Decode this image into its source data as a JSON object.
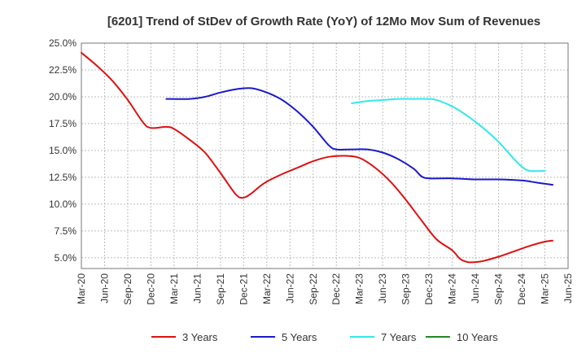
{
  "chart_data": {
    "type": "line",
    "title": "[6201]  Trend of StDev of Growth Rate (YoY) of 12Mo Mov Sum of Revenues",
    "xlabel": "",
    "ylabel": "",
    "ylim": [
      4.0,
      25.0
    ],
    "yticks": [
      5.0,
      7.5,
      10.0,
      12.5,
      15.0,
      17.5,
      20.0,
      22.5,
      25.0
    ],
    "ytick_labels": [
      "5.0%",
      "7.5%",
      "10.0%",
      "12.5%",
      "15.0%",
      "17.5%",
      "20.0%",
      "22.5%",
      "25.0%"
    ],
    "xlim": [
      0,
      63
    ],
    "xticks": [
      0,
      3,
      6,
      9,
      12,
      15,
      18,
      21,
      24,
      27,
      30,
      33,
      36,
      39,
      42,
      45,
      48,
      51,
      54,
      57,
      60,
      63
    ],
    "xtick_labels": [
      "Mar-20",
      "Jun-20",
      "Sep-20",
      "Dec-20",
      "Mar-21",
      "Jun-21",
      "Sep-21",
      "Dec-21",
      "Mar-22",
      "Jun-22",
      "Sep-22",
      "Dec-22",
      "Mar-23",
      "Jun-23",
      "Sep-23",
      "Dec-23",
      "Mar-24",
      "Jun-24",
      "Sep-24",
      "Dec-24",
      "Mar-25",
      "Jun-25"
    ],
    "grid": true,
    "legend_position": "bottom",
    "series": [
      {
        "name": "3 Years",
        "color": "#dd1111",
        "points": [
          [
            0,
            24.1
          ],
          [
            2,
            22.9
          ],
          [
            4,
            21.5
          ],
          [
            6,
            19.7
          ],
          [
            8,
            17.6
          ],
          [
            9,
            17.1
          ],
          [
            11,
            17.2
          ],
          [
            12,
            17.0
          ],
          [
            14,
            16.0
          ],
          [
            16,
            14.8
          ],
          [
            18,
            12.9
          ],
          [
            20,
            10.9
          ],
          [
            21,
            10.6
          ],
          [
            22,
            11.0
          ],
          [
            23,
            11.6
          ],
          [
            24,
            12.1
          ],
          [
            26,
            12.8
          ],
          [
            28,
            13.4
          ],
          [
            30,
            14.0
          ],
          [
            32,
            14.4
          ],
          [
            34,
            14.5
          ],
          [
            36,
            14.3
          ],
          [
            38,
            13.4
          ],
          [
            40,
            12.1
          ],
          [
            42,
            10.4
          ],
          [
            44,
            8.5
          ],
          [
            46,
            6.7
          ],
          [
            48,
            5.7
          ],
          [
            49,
            4.9
          ],
          [
            50,
            4.6
          ],
          [
            51,
            4.6
          ],
          [
            52,
            4.7
          ],
          [
            54,
            5.1
          ],
          [
            56,
            5.6
          ],
          [
            58,
            6.1
          ],
          [
            60,
            6.5
          ],
          [
            61,
            6.6
          ]
        ]
      },
      {
        "name": "5 Years",
        "color": "#1a1acc",
        "points": [
          [
            11,
            19.8
          ],
          [
            14,
            19.8
          ],
          [
            16,
            20.0
          ],
          [
            18,
            20.4
          ],
          [
            20,
            20.7
          ],
          [
            22,
            20.8
          ],
          [
            24,
            20.4
          ],
          [
            26,
            19.7
          ],
          [
            28,
            18.6
          ],
          [
            30,
            17.2
          ],
          [
            32,
            15.5
          ],
          [
            33,
            15.1
          ],
          [
            35,
            15.1
          ],
          [
            37,
            15.1
          ],
          [
            39,
            14.8
          ],
          [
            41,
            14.2
          ],
          [
            43,
            13.3
          ],
          [
            44,
            12.6
          ],
          [
            45,
            12.4
          ],
          [
            48,
            12.4
          ],
          [
            51,
            12.3
          ],
          [
            54,
            12.3
          ],
          [
            57,
            12.2
          ],
          [
            59,
            12.0
          ],
          [
            61,
            11.8
          ]
        ]
      },
      {
        "name": "7 Years",
        "color": "#33e8e8",
        "points": [
          [
            35,
            19.4
          ],
          [
            37,
            19.6
          ],
          [
            39,
            19.7
          ],
          [
            41,
            19.8
          ],
          [
            43,
            19.8
          ],
          [
            45,
            19.8
          ],
          [
            46,
            19.7
          ],
          [
            48,
            19.1
          ],
          [
            50,
            18.2
          ],
          [
            52,
            17.1
          ],
          [
            54,
            15.8
          ],
          [
            56,
            14.2
          ],
          [
            57,
            13.5
          ],
          [
            58,
            13.1
          ],
          [
            60,
            13.1
          ]
        ]
      },
      {
        "name": "10 Years",
        "color": "#228822",
        "points": []
      }
    ]
  }
}
